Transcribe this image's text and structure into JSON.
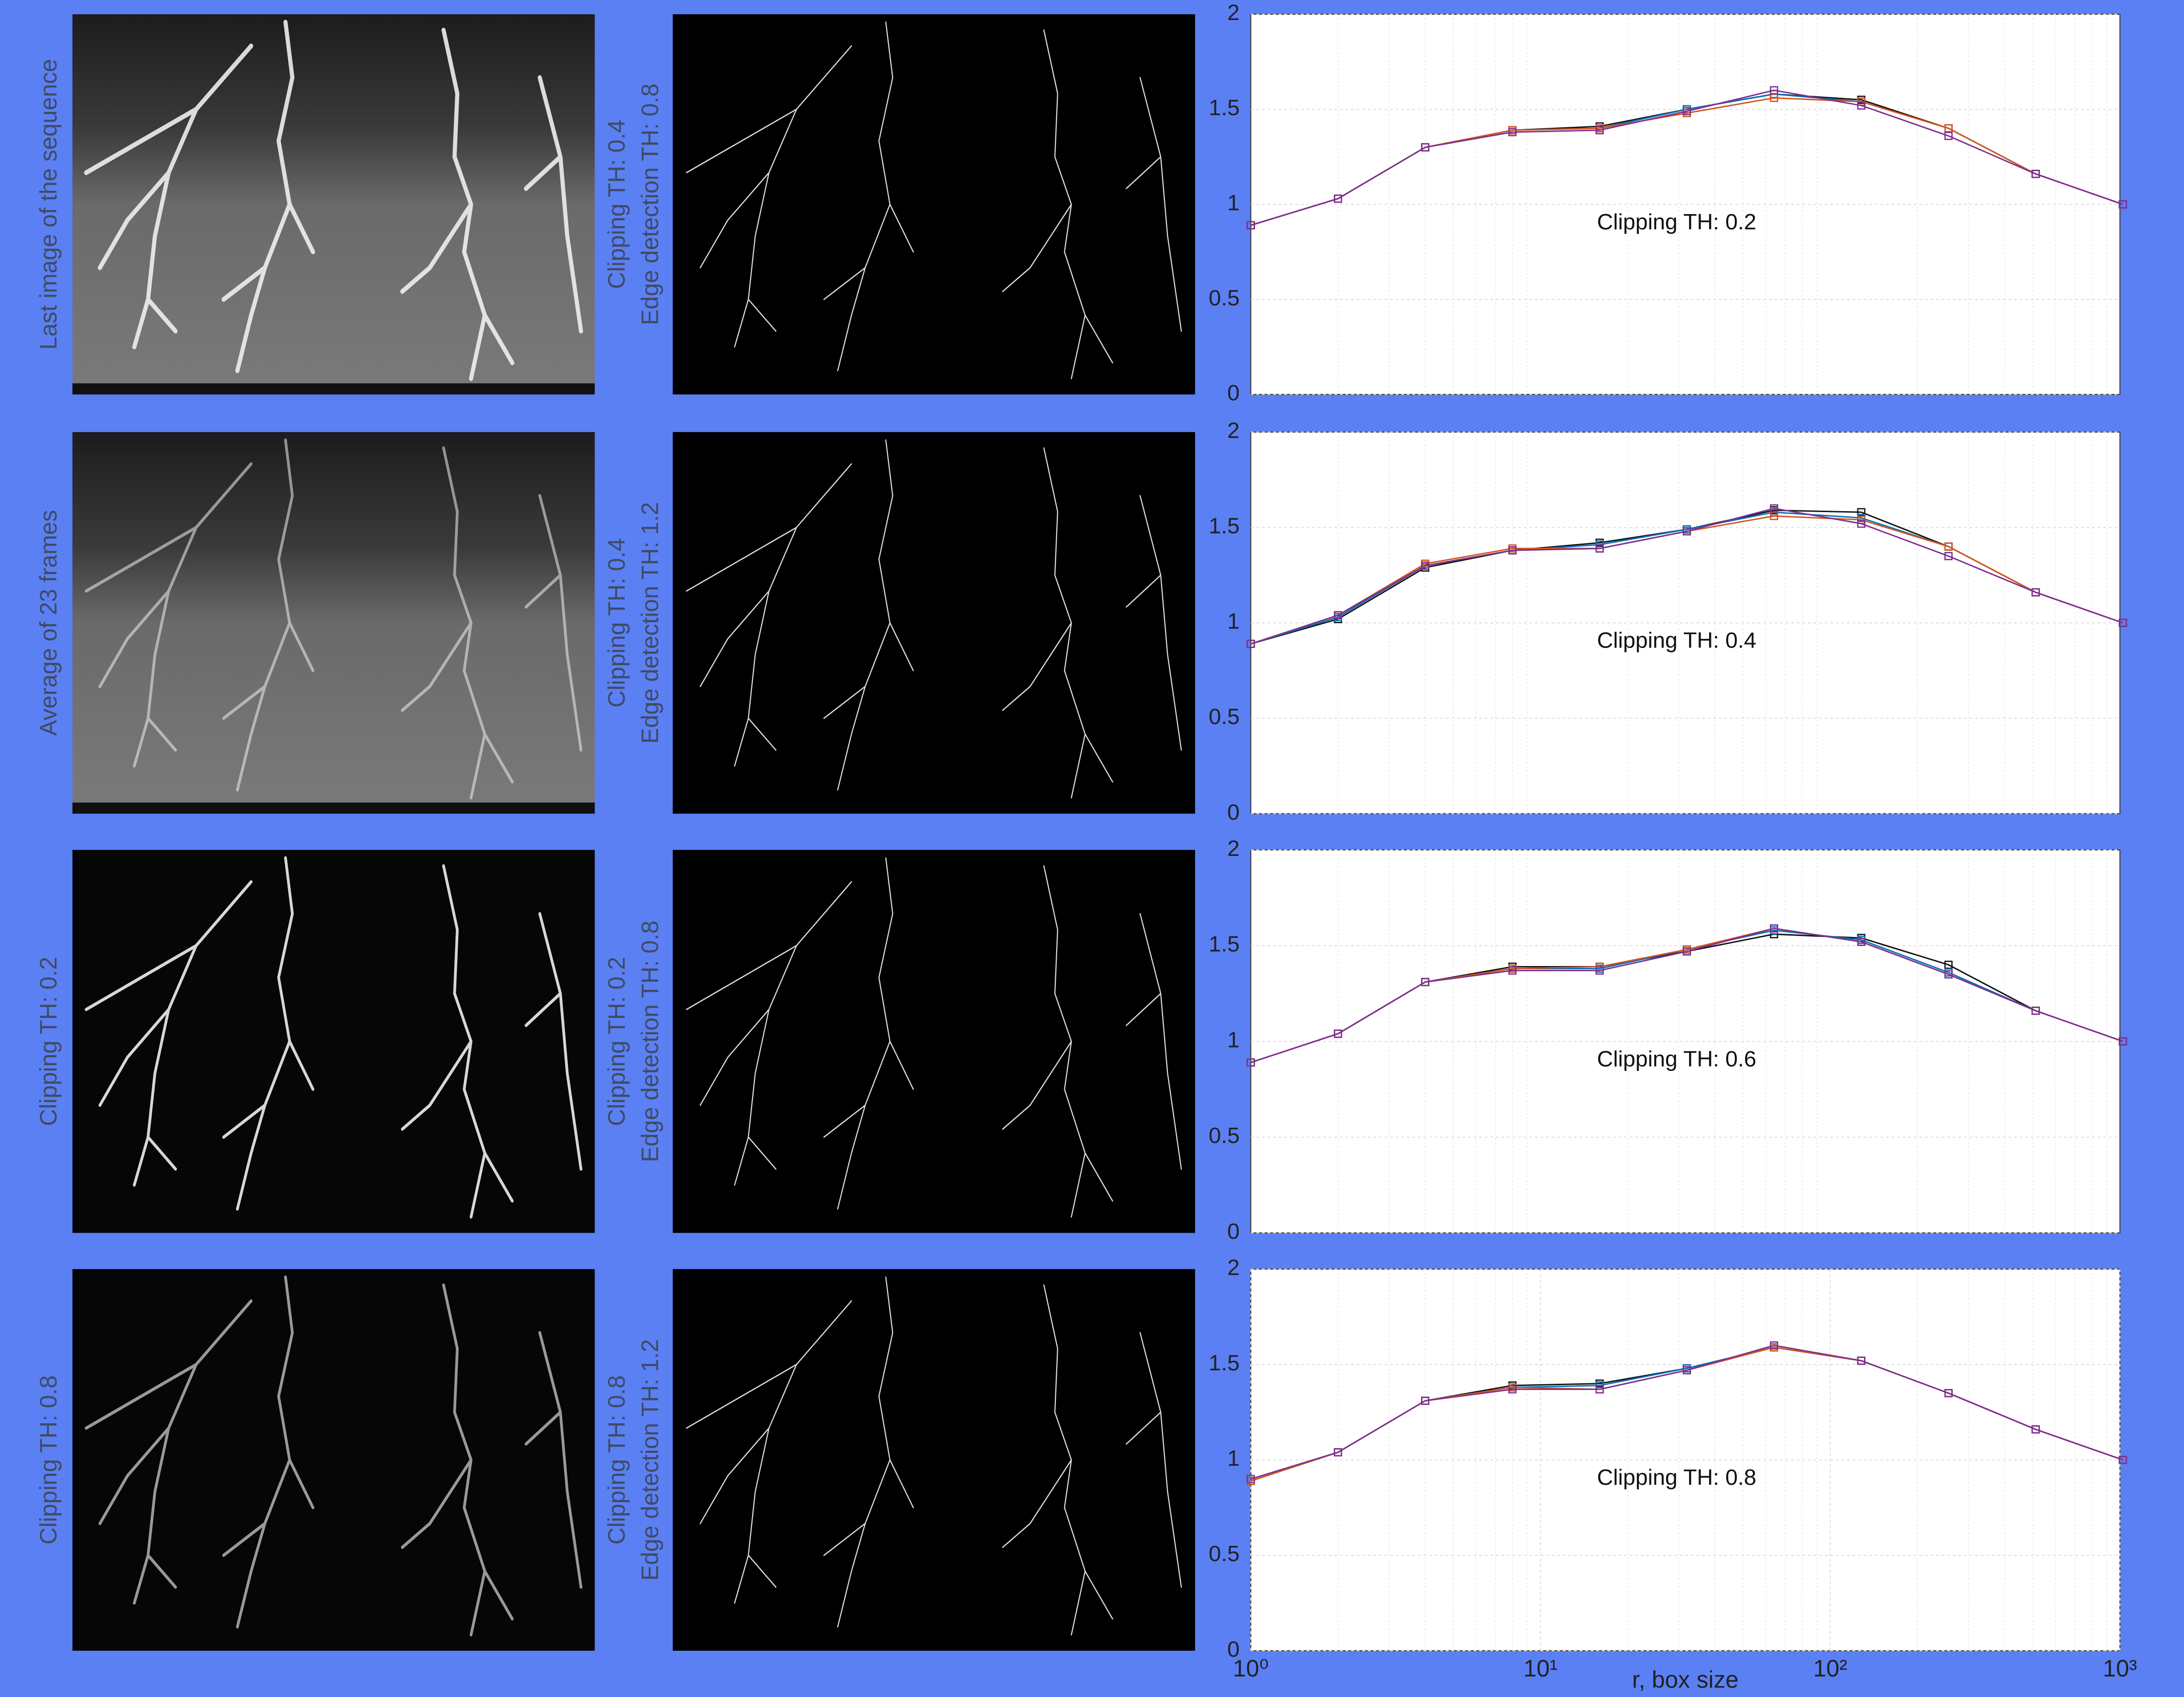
{
  "rows": [
    {
      "image_label": "Last image of the sequence",
      "edge_labels": [
        "Clipping TH: 0.4",
        "Edge detection TH: 0.8"
      ]
    },
    {
      "image_label": "Average of 23 frames",
      "edge_labels": [
        "Clipping TH: 0.4",
        "Edge detection TH: 1.2"
      ]
    },
    {
      "image_label": "Clipping TH: 0.2",
      "edge_labels": [
        "Clipping TH: 0.2",
        "Edge detection TH: 0.8"
      ]
    },
    {
      "image_label": "Clipping TH: 0.8",
      "edge_labels": [
        "Clipping TH: 0.8",
        "Edge detection TH: 1.2"
      ]
    }
  ],
  "chart_data": [
    {
      "type": "line",
      "annotation": "Clipping TH: 0.2",
      "log_x": true,
      "grid": true,
      "x": [
        1,
        2,
        4,
        8,
        16,
        32,
        64,
        128,
        256,
        512,
        1024
      ],
      "xlim": [
        1,
        1000
      ],
      "ylim": [
        0,
        2
      ],
      "yticks": [
        0,
        0.5,
        1,
        1.5,
        2
      ],
      "series": [
        {
          "color": "#111111",
          "values": [
            0.89,
            1.03,
            1.3,
            1.39,
            1.41,
            1.5,
            1.58,
            1.55,
            1.4,
            1.16,
            1.0
          ]
        },
        {
          "color": "#0072bd",
          "values": [
            0.89,
            1.03,
            1.3,
            1.39,
            1.4,
            1.5,
            1.58,
            1.54,
            1.4,
            1.16,
            1.0
          ]
        },
        {
          "color": "#d95319",
          "values": [
            0.89,
            1.03,
            1.3,
            1.39,
            1.4,
            1.48,
            1.56,
            1.54,
            1.4,
            1.16,
            1.0
          ]
        },
        {
          "color": "#7e2f8e",
          "values": [
            0.89,
            1.03,
            1.3,
            1.38,
            1.39,
            1.49,
            1.6,
            1.52,
            1.36,
            1.16,
            1.0
          ]
        }
      ]
    },
    {
      "type": "line",
      "annotation": "Clipping TH: 0.4",
      "log_x": true,
      "grid": true,
      "x": [
        1,
        2,
        4,
        8,
        16,
        32,
        64,
        128,
        256,
        512,
        1024
      ],
      "xlim": [
        1,
        1000
      ],
      "ylim": [
        0,
        2
      ],
      "yticks": [
        0,
        0.5,
        1,
        1.5,
        2
      ],
      "series": [
        {
          "color": "#111111",
          "values": [
            0.89,
            1.02,
            1.29,
            1.38,
            1.42,
            1.49,
            1.59,
            1.58,
            1.4,
            1.16,
            1.0
          ]
        },
        {
          "color": "#0072bd",
          "values": [
            0.89,
            1.03,
            1.3,
            1.38,
            1.41,
            1.49,
            1.58,
            1.55,
            1.4,
            1.16,
            1.0
          ]
        },
        {
          "color": "#d95319",
          "values": [
            0.89,
            1.04,
            1.31,
            1.39,
            1.39,
            1.48,
            1.56,
            1.54,
            1.4,
            1.16,
            1.0
          ]
        },
        {
          "color": "#7e2f8e",
          "values": [
            0.89,
            1.04,
            1.3,
            1.38,
            1.39,
            1.48,
            1.6,
            1.52,
            1.35,
            1.16,
            1.0
          ]
        }
      ]
    },
    {
      "type": "line",
      "annotation": "Clipping TH: 0.6",
      "log_x": true,
      "grid": true,
      "x": [
        1,
        2,
        4,
        8,
        16,
        32,
        64,
        128,
        256,
        512,
        1024
      ],
      "xlim": [
        1,
        1000
      ],
      "ylim": [
        0,
        2
      ],
      "yticks": [
        0,
        0.5,
        1,
        1.5,
        2
      ],
      "series": [
        {
          "color": "#111111",
          "values": [
            0.89,
            1.04,
            1.31,
            1.39,
            1.39,
            1.47,
            1.56,
            1.54,
            1.4,
            1.16,
            1.0
          ]
        },
        {
          "color": "#0072bd",
          "values": [
            0.89,
            1.04,
            1.31,
            1.38,
            1.38,
            1.48,
            1.58,
            1.53,
            1.36,
            1.16,
            1.0
          ]
        },
        {
          "color": "#d95319",
          "values": [
            0.89,
            1.04,
            1.31,
            1.38,
            1.39,
            1.48,
            1.59,
            1.52,
            1.35,
            1.16,
            1.0
          ]
        },
        {
          "color": "#7e2f8e",
          "values": [
            0.89,
            1.04,
            1.31,
            1.37,
            1.37,
            1.47,
            1.59,
            1.52,
            1.35,
            1.16,
            1.0
          ]
        }
      ]
    },
    {
      "type": "line",
      "annotation": "Clipping TH: 0.8",
      "log_x": true,
      "grid": true,
      "xlabel": "r, box size",
      "x": [
        1,
        2,
        4,
        8,
        16,
        32,
        64,
        128,
        256,
        512,
        1024
      ],
      "xlim": [
        1,
        1000
      ],
      "ylim": [
        0,
        2
      ],
      "yticks": [
        0,
        0.5,
        1,
        1.5,
        2
      ],
      "xticks": [
        {
          "value": 1,
          "label": "10⁰"
        },
        {
          "value": 10,
          "label": "10¹"
        },
        {
          "value": 100,
          "label": "10²"
        },
        {
          "value": 1000,
          "label": "10³"
        }
      ],
      "series": [
        {
          "color": "#111111",
          "values": [
            0.89,
            1.04,
            1.31,
            1.39,
            1.4,
            1.48,
            1.59,
            1.52,
            1.35,
            1.16,
            1.0
          ]
        },
        {
          "color": "#0072bd",
          "values": [
            0.89,
            1.04,
            1.31,
            1.38,
            1.39,
            1.48,
            1.59,
            1.52,
            1.35,
            1.16,
            1.0
          ]
        },
        {
          "color": "#d95319",
          "values": [
            0.89,
            1.04,
            1.31,
            1.38,
            1.37,
            1.47,
            1.59,
            1.52,
            1.35,
            1.16,
            1.0
          ]
        },
        {
          "color": "#7e2f8e",
          "values": [
            0.9,
            1.04,
            1.31,
            1.37,
            1.37,
            1.47,
            1.6,
            1.52,
            1.35,
            1.16,
            1.0
          ]
        }
      ]
    }
  ]
}
